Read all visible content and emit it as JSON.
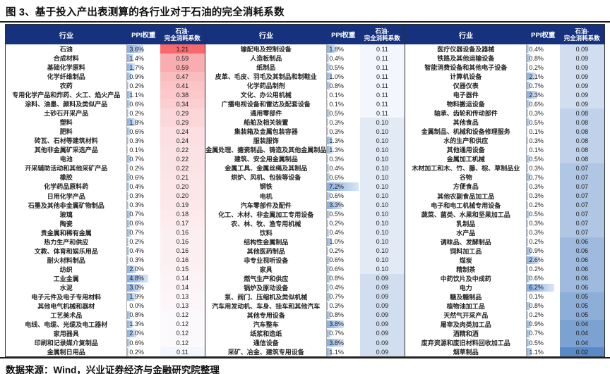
{
  "title": "图 3、基于投入产出表测算的各行业对于石油的完全消耗系数",
  "source": "数据来源：Wind，兴业证券经济与金融研究院整理",
  "table": {
    "headers": {
      "industry": "行业",
      "weight": "PPI权重",
      "coef_line1": "石油-",
      "coef_line2": "完全消耗系数"
    }
  },
  "colors": {
    "header_bg": "#16317D",
    "scale_max_red": "#F8696B",
    "scale_mid_white": "#FCFCFF",
    "scale_min_blue": "#5A8AC6",
    "ppi_bar_blue": "#87ADE0",
    "border_dark": "#2E2E2E"
  },
  "chart_data": {
    "type": "table",
    "title": "基于投入产出表测算的各行业对于石油的完全消耗系数",
    "columns": [
      "行业",
      "PPI权重(%)",
      "石油-完全消耗系数"
    ],
    "ppi_bar_max": 7.5,
    "coef_min": 0.02,
    "coef_mid": 0.115,
    "coef_max": 1.21,
    "groups": [
      [
        [
          "石油",
          3.6,
          1.21
        ],
        [
          "合成材料",
          1.4,
          0.59
        ],
        [
          "基础化学原料",
          1.7,
          0.59
        ],
        [
          "化学纤维制品",
          0.9,
          0.47
        ],
        [
          "农药",
          0.2,
          0.41
        ],
        [
          "专用化学产品和炸药、火工、焰火产品",
          1.1,
          0.38
        ],
        [
          "涂料、油墨、颜料及类似产品",
          0.6,
          0.34
        ],
        [
          "土砂石开采产品",
          0.2,
          0.29
        ],
        [
          "塑料",
          1.8,
          0.29
        ],
        [
          "肥料",
          0.6,
          0.24
        ],
        [
          "砖瓦、石材等建筑材料",
          0.3,
          0.24
        ],
        [
          "其他非金属矿采选产品",
          0.1,
          0.22
        ],
        [
          "电池",
          0.7,
          0.22
        ],
        [
          "开采辅助活动和其他采矿产品",
          0.2,
          0.22
        ],
        [
          "橡胶",
          0.6,
          0.21
        ],
        [
          "化学药品原料药",
          0.4,
          0.2
        ],
        [
          "日用化学产品",
          0.3,
          0.2
        ],
        [
          "石墨及其他非金属矿物制品",
          0.3,
          0.19
        ],
        [
          "玻璃",
          0.7,
          0.18
        ],
        [
          "陶瓷",
          0.6,
          0.17
        ],
        [
          "贵金属和稀有金属",
          0.7,
          0.16
        ],
        [
          "热力生产和供应",
          0.2,
          0.16
        ],
        [
          "文教、体育和娱乐用品",
          0.4,
          0.16
        ],
        [
          "耐火材料制品",
          0.3,
          0.16
        ],
        [
          "纺织",
          2.0,
          0.15
        ],
        [
          "工业金属",
          4.8,
          0.14
        ],
        [
          "水泥",
          3.0,
          0.14
        ],
        [
          "电子元件及电子专用材料",
          1.9,
          0.13
        ],
        [
          "其他电气机械和器材",
          0.0,
          0.13
        ],
        [
          "工艺美术品",
          0.8,
          0.12
        ],
        [
          "电线、电缆、光缆及电工器材",
          1.3,
          0.12
        ],
        [
          "家用器具",
          2.0,
          0.12
        ],
        [
          "印刷和记录媒介复制品",
          0.6,
          0.12
        ],
        [
          "金属制日用品",
          0.2,
          0.11
        ]
      ],
      [
        [
          "输配电及控制设备",
          1.8,
          0.11
        ],
        [
          "人造板制品",
          0.4,
          0.11
        ],
        [
          "纸制品",
          0.5,
          0.11
        ],
        [
          "皮革、毛皮、羽毛及其制品和制鞋业",
          1.0,
          0.11
        ],
        [
          "化学药品制剂",
          0.8,
          0.11
        ],
        [
          "文化、办公用机械",
          0.1,
          0.11
        ],
        [
          "广播电视设备和雷达及配套设备",
          0.1,
          0.11
        ],
        [
          "通用零部件",
          0.5,
          0.11
        ],
        [
          "船舶及相关装置",
          0.3,
          0.1
        ],
        [
          "集装箱及金属包装容器",
          0.3,
          0.1
        ],
        [
          "服装服饰",
          1.3,
          0.1
        ],
        [
          "金属处理、搪瓷制品、铸造及其他金属制品",
          1.3,
          0.1
        ],
        [
          "建筑、安全用金属制品",
          0.3,
          0.1
        ],
        [
          "金属工具、金属丝绳及其制品",
          0.4,
          0.1
        ],
        [
          "烘炉、风机、包装等设备",
          0.6,
          0.1
        ],
        [
          "钢铁",
          7.2,
          0.1
        ],
        [
          "电机",
          0.6,
          0.1
        ],
        [
          "汽车零部件及配件",
          3.3,
          0.1
        ],
        [
          "化工、木材、非金属加工专用设备",
          0.5,
          0.1
        ],
        [
          "农、林、牧、渔专用机械",
          0.2,
          0.1
        ],
        [
          "饮料",
          0.4,
          0.1
        ],
        [
          "结构性金属制品",
          1.0,
          0.1
        ],
        [
          "其他医药制品",
          0.2,
          0.1
        ],
        [
          "非专业视听设备",
          0.6,
          0.1
        ],
        [
          "家具",
          0.6,
          0.1
        ],
        [
          "燃气生产和供应",
          0.8,
          0.09
        ],
        [
          "锅炉及原动设备",
          0.4,
          0.09
        ],
        [
          "泵、阀门、压缩机及类似机械",
          0.7,
          0.09
        ],
        [
          "汽车用发动机、车身、挂车和其他汽车",
          0.3,
          0.09
        ],
        [
          "其他专用设备",
          0.8,
          0.09
        ],
        [
          "汽车整车",
          3.8,
          0.09
        ],
        [
          "纸浆和造纸",
          0.7,
          0.09
        ],
        [
          "通信设备",
          3.8,
          0.09
        ],
        [
          "采矿、冶金、建筑专用设备",
          1.1,
          0.09
        ]
      ],
      [
        [
          "医疗仪器设备及器械",
          0.4,
          0.09
        ],
        [
          "铁路及其他运输设备",
          0.8,
          0.09
        ],
        [
          "智能消费设备和其他电子设备",
          0.2,
          0.09
        ],
        [
          "计算机设备",
          2.1,
          0.09
        ],
        [
          "仪器仪表",
          0.7,
          0.09
        ],
        [
          "电子器件",
          2.3,
          0.09
        ],
        [
          "物料搬运设备",
          0.6,
          0.09
        ],
        [
          "轴承、齿轮和传动部件",
          0.3,
          0.08
        ],
        [
          "其他食品",
          0.5,
          0.08
        ],
        [
          "金属制品、机械和设备修理服务",
          0.1,
          0.08
        ],
        [
          "水的生产和供应",
          0.3,
          0.08
        ],
        [
          "其他通用设备",
          0.1,
          0.08
        ],
        [
          "金属加工机械",
          0.5,
          0.08
        ],
        [
          "木材加工和木、竹、藤、棕、草制品业",
          0.3,
          0.07
        ],
        [
          "谷物",
          0.7,
          0.07
        ],
        [
          "方便食品",
          0.3,
          0.07
        ],
        [
          "其他农副食品加工品",
          0.3,
          0.07
        ],
        [
          "电子和电工机械专用设备",
          0.2,
          0.07
        ],
        [
          "蔬菜、菌类、水果和坚果加工品",
          0.5,
          0.07
        ],
        [
          "乳制品",
          0.3,
          0.07
        ],
        [
          "水产品",
          0.3,
          0.07
        ],
        [
          "调味品、发酵制品",
          0.2,
          0.06
        ],
        [
          "饲料加工品",
          0.9,
          0.06
        ],
        [
          "煤炭",
          2.6,
          0.06
        ],
        [
          "精制茶",
          0.2,
          0.06
        ],
        [
          "中药饮片及中成药",
          0.6,
          0.06
        ],
        [
          "电力",
          6.2,
          0.06
        ],
        [
          "糖及糖制品",
          0.1,
          0.05
        ],
        [
          "植物油加工品",
          0.8,
          0.05
        ],
        [
          "天然气开采产品",
          0.2,
          0.05
        ],
        [
          "屠宰及肉类加工品",
          0.9,
          0.04
        ],
        [
          "酒精和酒",
          0.7,
          0.04
        ],
        [
          "废弃资源和废旧材料回收加工品",
          0.5,
          0.04
        ],
        [
          "烟草制品",
          1.1,
          0.02
        ]
      ]
    ]
  }
}
